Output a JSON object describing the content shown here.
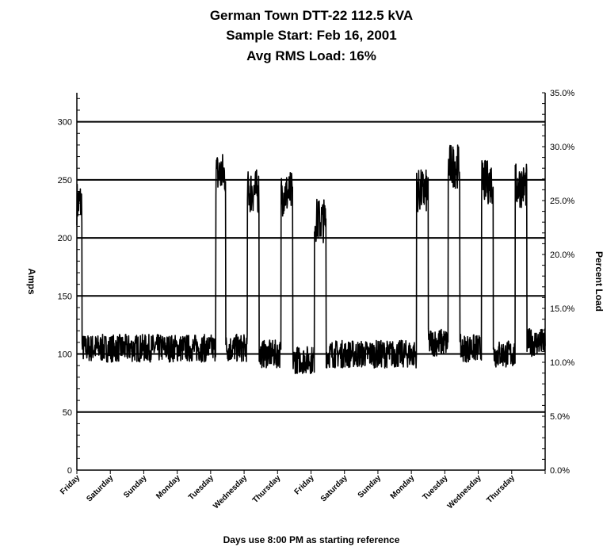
{
  "chart_data": {
    "type": "line",
    "title": "German Town DTT-22 112.5 kVA",
    "subtitle": "Sample Start: Feb 16, 2001",
    "subtitle2": "Avg RMS Load: 16%",
    "xlabel": "Days use 8:00 PM as starting reference",
    "ylabel": "Amps",
    "y2label": "Percent Load",
    "ylim": [
      0,
      300
    ],
    "yticks": [
      0,
      50,
      100,
      150,
      200,
      250,
      300
    ],
    "y2lim": [
      0,
      35
    ],
    "y2ticks": [
      "0.0%",
      "5.0%",
      "10.0%",
      "15.0%",
      "20.0%",
      "25.0%",
      "30.0%",
      "35.0%"
    ],
    "grid": true,
    "legend": "none",
    "categories": [
      "Friday",
      "Saturday",
      "Sunday",
      "Monday",
      "Tuesday",
      "Wednesday",
      "Thursday",
      "Friday",
      "Saturday",
      "Sunday",
      "Monday",
      "Tuesday",
      "Wednesday",
      "Thursday"
    ],
    "series": [
      {
        "color": "#000000",
        "base_amps": 105,
        "noise_amps": 12,
        "segments": [
          {
            "day_start": 0.0,
            "day_end": 0.15,
            "amps": 230
          },
          {
            "day_start": 0.15,
            "day_end": 4.15,
            "amps": 105
          },
          {
            "day_start": 4.15,
            "day_end": 4.45,
            "amps": 255
          },
          {
            "day_start": 4.45,
            "day_end": 5.1,
            "amps": 105
          },
          {
            "day_start": 5.1,
            "day_end": 5.45,
            "amps": 240
          },
          {
            "day_start": 5.45,
            "day_end": 6.1,
            "amps": 100
          },
          {
            "day_start": 6.1,
            "day_end": 6.45,
            "amps": 238
          },
          {
            "day_start": 6.45,
            "day_end": 7.1,
            "amps": 95
          },
          {
            "day_start": 7.1,
            "day_end": 7.45,
            "amps": 215
          },
          {
            "day_start": 7.45,
            "day_end": 10.15,
            "amps": 100
          },
          {
            "day_start": 10.15,
            "day_end": 10.5,
            "amps": 240
          },
          {
            "day_start": 10.5,
            "day_end": 11.1,
            "amps": 110
          },
          {
            "day_start": 11.1,
            "day_end": 11.45,
            "amps": 262
          },
          {
            "day_start": 11.45,
            "day_end": 12.1,
            "amps": 105
          },
          {
            "day_start": 12.1,
            "day_end": 12.45,
            "amps": 248
          },
          {
            "day_start": 12.45,
            "day_end": 13.1,
            "amps": 100
          },
          {
            "day_start": 13.1,
            "day_end": 13.45,
            "amps": 245
          },
          {
            "day_start": 13.45,
            "day_end": 14.0,
            "amps": 110
          }
        ]
      }
    ]
  }
}
